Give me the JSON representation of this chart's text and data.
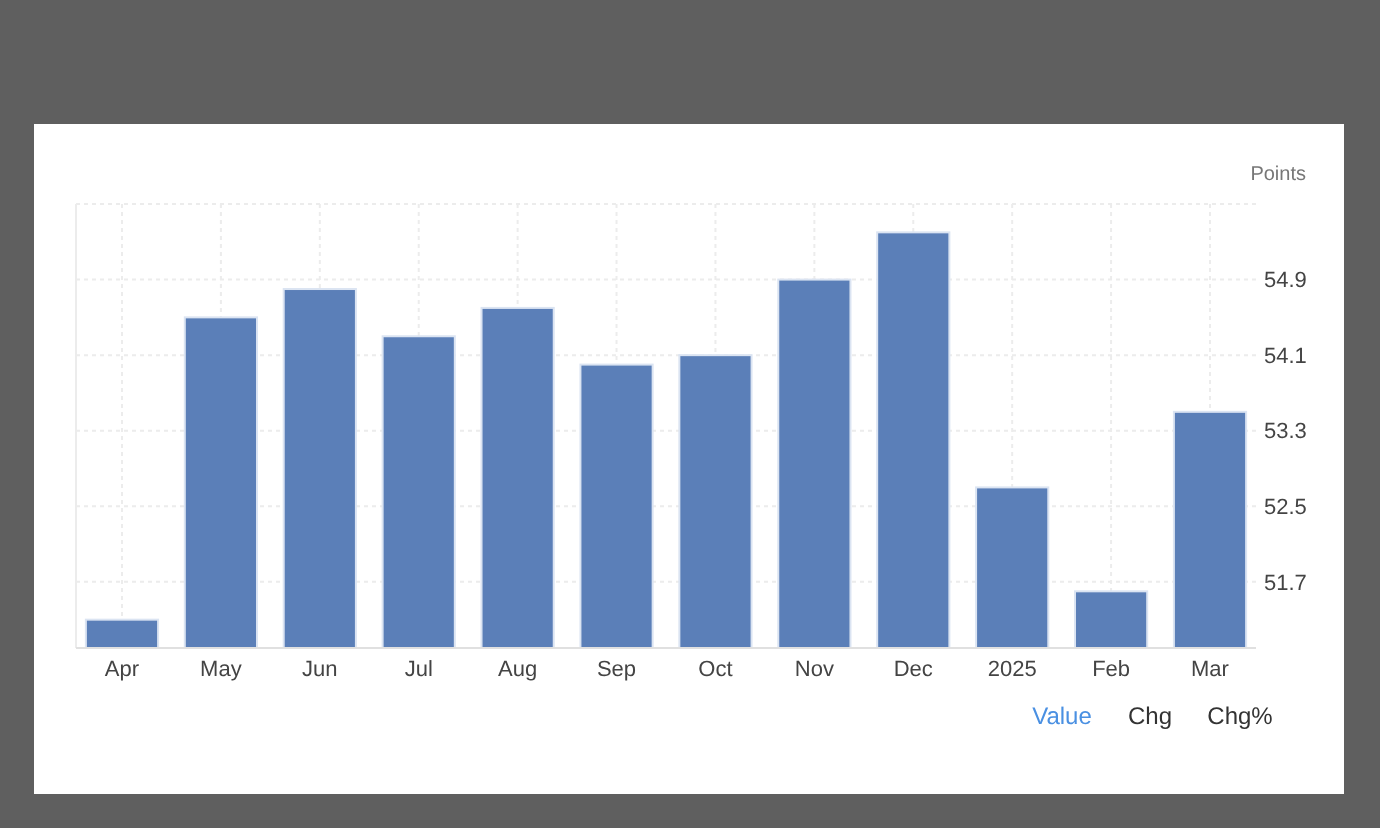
{
  "chart_data": {
    "type": "bar",
    "ylabel": "Points",
    "categories": [
      "Apr",
      "May",
      "Jun",
      "Jul",
      "Aug",
      "Sep",
      "Oct",
      "Nov",
      "Dec",
      "2025",
      "Feb",
      "Mar"
    ],
    "values": [
      51.3,
      54.5,
      54.8,
      54.3,
      54.6,
      54.0,
      54.1,
      54.9,
      55.4,
      52.7,
      51.6,
      53.5
    ],
    "color": "#5b7fb8",
    "ylim": [
      51.0,
      55.7
    ],
    "yticks": [
      51.7,
      52.5,
      53.3,
      54.1,
      54.9
    ],
    "grid": true,
    "annotations": [
      "Value",
      "Chg",
      "Chg%"
    ]
  }
}
